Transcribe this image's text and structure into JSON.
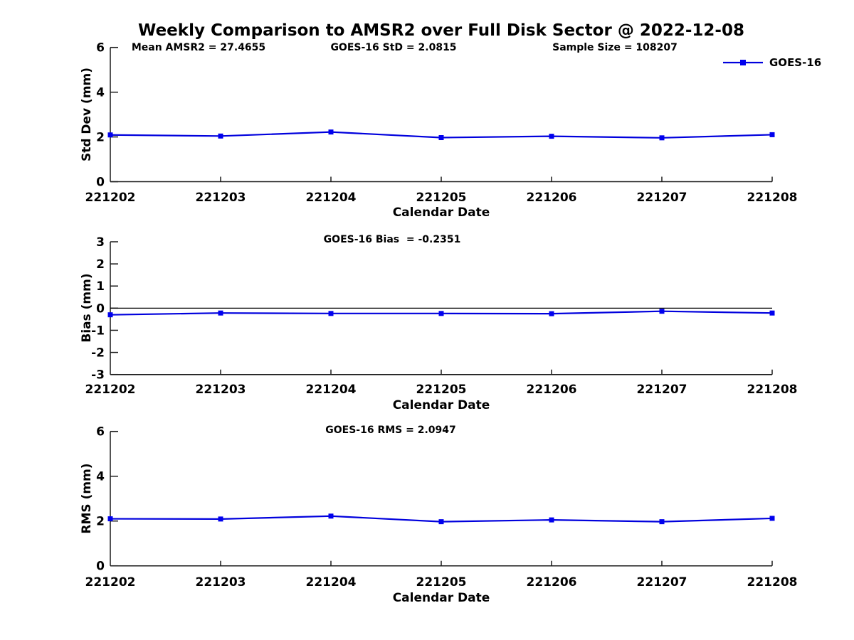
{
  "page_title": "Weekly Comparison to AMSR2 over Full Disk Sector @ 2022-12-08",
  "annotations": {
    "mean_amsr2": "Mean AMSR2 = 27.4655",
    "goes16_std": "GOES-16 StD = 2.0815",
    "sample_size": "Sample Size = 108207"
  },
  "legend": {
    "label": "GOES-16"
  },
  "colors": {
    "series_line": "#0000DD",
    "marker": "#0000EE",
    "axis": "#1a1a1a",
    "zero_line": "#000000",
    "background": "#FFFFFF",
    "text": "#000000"
  },
  "chart_data": [
    {
      "id": "std-dev",
      "type": "line",
      "categories": [
        "221202",
        "221203",
        "221204",
        "221205",
        "221206",
        "221207",
        "221208"
      ],
      "series": [
        {
          "name": "GOES-16",
          "values": [
            2.09,
            2.04,
            2.22,
            1.97,
            2.03,
            1.96,
            2.1
          ]
        }
      ],
      "xlabel": "Calendar Date",
      "ylabel": "Std Dev (mm)",
      "ylim": [
        0,
        6
      ],
      "yticks": [
        0,
        2,
        4,
        6
      ],
      "zero_line": false,
      "legend_position": "top-right-outside",
      "grid": false
    },
    {
      "id": "bias",
      "type": "line",
      "annotation": "GOES-16 Bias  = -0.2351",
      "categories": [
        "221202",
        "221203",
        "221204",
        "221205",
        "221206",
        "221207",
        "221208"
      ],
      "series": [
        {
          "name": "GOES-16",
          "values": [
            -0.3,
            -0.22,
            -0.24,
            -0.24,
            -0.25,
            -0.14,
            -0.22
          ]
        }
      ],
      "xlabel": "Calendar Date",
      "ylabel": "Bias (mm)",
      "ylim": [
        -3,
        3
      ],
      "yticks": [
        -3,
        -2,
        -1,
        0,
        1,
        2,
        3
      ],
      "zero_line": true,
      "grid": false
    },
    {
      "id": "rms",
      "type": "line",
      "annotation": "GOES-16 RMS = 2.0947",
      "categories": [
        "221202",
        "221203",
        "221204",
        "221205",
        "221206",
        "221207",
        "221208"
      ],
      "series": [
        {
          "name": "GOES-16",
          "values": [
            2.1,
            2.09,
            2.22,
            1.97,
            2.05,
            1.97,
            2.12
          ]
        }
      ],
      "xlabel": "Calendar Date",
      "ylabel": "RMS (mm)",
      "ylim": [
        0,
        6
      ],
      "yticks": [
        0,
        2,
        4,
        6
      ],
      "zero_line": false,
      "grid": false
    }
  ]
}
